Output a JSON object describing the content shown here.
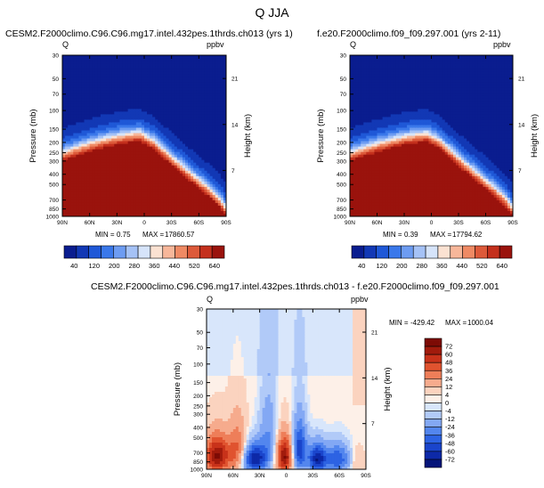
{
  "figure": {
    "title": "Q JJA"
  },
  "colors": {
    "sequential": [
      "#0a1d8f",
      "#1238b5",
      "#1f58d7",
      "#3a78ea",
      "#6d9cf2",
      "#a5c2f6",
      "#d6e4fa",
      "#fbe2d2",
      "#f7b79a",
      "#ef8a64",
      "#dd5a3a",
      "#c4301d",
      "#9a130d"
    ],
    "diverging": [
      "#06157a",
      "#0d29a8",
      "#1a45cc",
      "#2d63e3",
      "#5386ee",
      "#83a8f4",
      "#b1caf8",
      "#d8e6fb",
      "#fdf0e8",
      "#fbd3bf",
      "#f6ab8d",
      "#ee7e59",
      "#e0532f",
      "#c8321a",
      "#a11b0c",
      "#7d0b05"
    ]
  },
  "chart_data": [
    {
      "type": "heatmap",
      "title": "CESM2.F2000climo.C96.C96.mg17.intel.432pes.1thrds.ch013 (yrs 1)",
      "variable_label": "Q",
      "units_label": "ppbv",
      "ylabel": "Pressure (mb)",
      "ylabel_right": "Height (km)",
      "x_ticks": [
        "90N",
        "60N",
        "30N",
        "0",
        "30S",
        "60S",
        "90S"
      ],
      "y_ticks": [
        "30",
        "50",
        "70",
        "100",
        "150",
        "200",
        "250",
        "300",
        "400",
        "500",
        "700",
        "850",
        "1000"
      ],
      "y_ticks_right": [
        "21",
        "14",
        "7"
      ],
      "stats": {
        "min_label": "MIN =",
        "min": "0.75",
        "max_label": "MAX =",
        "max": "17860.57"
      },
      "colorbar_labels": [
        "40",
        "120",
        "200",
        "280",
        "360",
        "440",
        "520",
        "640"
      ],
      "boundary_surface_mb": [
        {
          "lat": 90,
          "p": 300
        },
        {
          "lat": 75,
          "p": 270
        },
        {
          "lat": 60,
          "p": 245
        },
        {
          "lat": 45,
          "p": 225
        },
        {
          "lat": 30,
          "p": 210
        },
        {
          "lat": 15,
          "p": 200
        },
        {
          "lat": 5,
          "p": 195
        },
        {
          "lat": -10,
          "p": 230
        },
        {
          "lat": -25,
          "p": 300
        },
        {
          "lat": -40,
          "p": 390
        },
        {
          "lat": -55,
          "p": 500
        },
        {
          "lat": -70,
          "p": 640
        },
        {
          "lat": -82,
          "p": 800
        },
        {
          "lat": -90,
          "p": 1000
        }
      ]
    },
    {
      "type": "heatmap",
      "title": "f.e20.F2000climo.f09_f09.297.001 (yrs 2-11)",
      "variable_label": "Q",
      "units_label": "ppbv",
      "ylabel": "Pressure (mb)",
      "ylabel_right": "Height (km)",
      "x_ticks": [
        "90N",
        "60N",
        "30N",
        "0",
        "30S",
        "60S",
        "90S"
      ],
      "y_ticks": [
        "30",
        "50",
        "70",
        "100",
        "150",
        "200",
        "250",
        "300",
        "400",
        "500",
        "700",
        "850",
        "1000"
      ],
      "y_ticks_right": [
        "21",
        "14",
        "7"
      ],
      "stats": {
        "min_label": "MIN =",
        "min": "0.39",
        "max_label": "MAX =",
        "max": "17794.62"
      },
      "colorbar_labels": [
        "40",
        "120",
        "200",
        "280",
        "360",
        "440",
        "520",
        "640"
      ],
      "boundary_surface_mb": [
        {
          "lat": 90,
          "p": 300
        },
        {
          "lat": 75,
          "p": 272
        },
        {
          "lat": 60,
          "p": 248
        },
        {
          "lat": 45,
          "p": 228
        },
        {
          "lat": 30,
          "p": 212
        },
        {
          "lat": 15,
          "p": 202
        },
        {
          "lat": 5,
          "p": 197
        },
        {
          "lat": -10,
          "p": 232
        },
        {
          "lat": -25,
          "p": 305
        },
        {
          "lat": -40,
          "p": 395
        },
        {
          "lat": -55,
          "p": 505
        },
        {
          "lat": -70,
          "p": 650
        },
        {
          "lat": -82,
          "p": 810
        },
        {
          "lat": -90,
          "p": 1000
        }
      ]
    },
    {
      "type": "heatmap",
      "title": "CESM2.F2000climo.C96.C96.mg17.intel.432pes.1thrds.ch013 - f.e20.F2000climo.f09_f09.297.001",
      "variable_label": "Q",
      "units_label": "ppbv",
      "ylabel": "Pressure (mb)",
      "ylabel_right": "Height (km)",
      "x_ticks": [
        "90N",
        "60N",
        "30N",
        "0",
        "30S",
        "60S",
        "90S"
      ],
      "y_ticks": [
        "30",
        "50",
        "70",
        "100",
        "150",
        "200",
        "250",
        "300",
        "400",
        "500",
        "700",
        "850",
        "1000"
      ],
      "y_ticks_right": [
        "21",
        "14",
        "7"
      ],
      "stats": {
        "min_label": "MIN =",
        "min": "-429.42",
        "max_label": "MAX =",
        "max": "1000.04"
      },
      "colorbar_labels": [
        "72",
        "60",
        "48",
        "36",
        "24",
        "12",
        "4",
        "0",
        "-4",
        "-12",
        "-24",
        "-36",
        "-48",
        "-60",
        "-72"
      ],
      "anomalies": [
        {
          "lat": 78,
          "p": 750,
          "v": 72,
          "wlat": 14,
          "wp": 300
        },
        {
          "lat": 55,
          "p": 650,
          "v": 36,
          "wlat": 10,
          "wp": 350
        },
        {
          "lat": 35,
          "p": 800,
          "v": -72,
          "wlat": 14,
          "wp": 250
        },
        {
          "lat": 20,
          "p": 450,
          "v": -24,
          "wlat": 10,
          "wp": 350
        },
        {
          "lat": 2,
          "p": 750,
          "v": 72,
          "wlat": 9,
          "wp": 300
        },
        {
          "lat": -15,
          "p": 650,
          "v": -60,
          "wlat": 8,
          "wp": 350
        },
        {
          "lat": -35,
          "p": 800,
          "v": -72,
          "wlat": 10,
          "wp": 250
        },
        {
          "lat": -58,
          "p": 800,
          "v": -48,
          "wlat": 14,
          "wp": 250
        },
        {
          "lat": -80,
          "p": 850,
          "v": 12,
          "wlat": 8,
          "wp": 250
        }
      ]
    }
  ]
}
